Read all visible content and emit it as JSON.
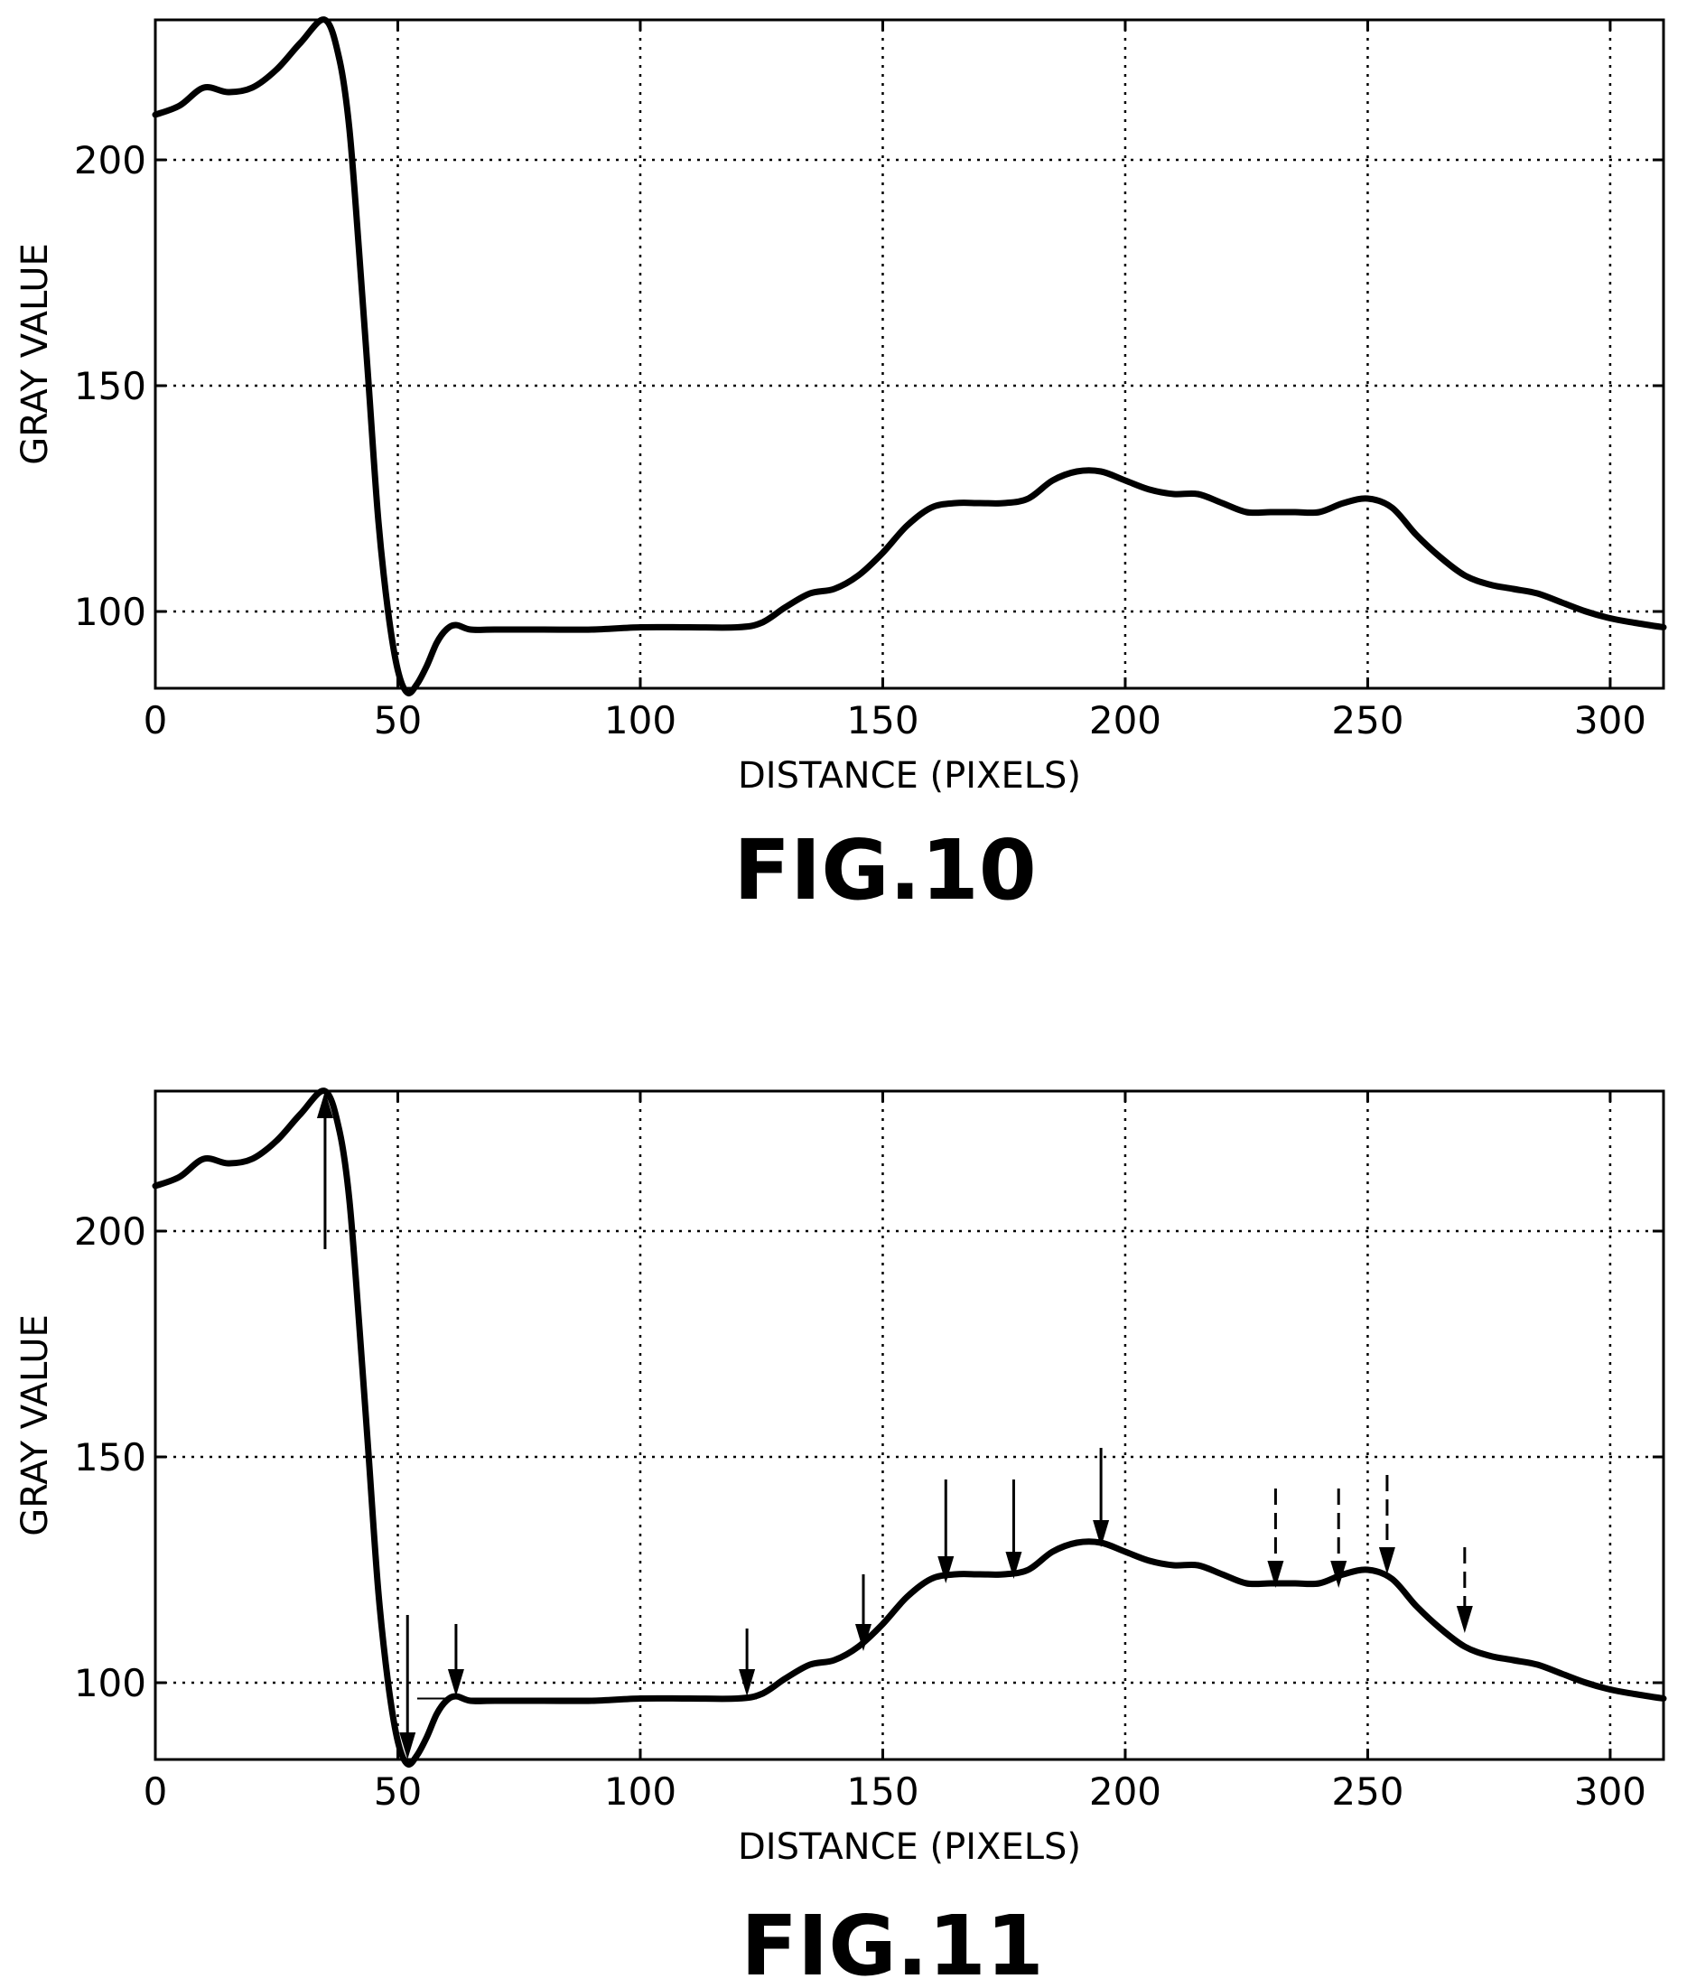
{
  "chart_data": [
    {
      "type": "line",
      "figure_label": "FIG.10",
      "xlabel": "DISTANCE (PIXELS)",
      "ylabel": "GRAY VALUE",
      "xlim": [
        0,
        311
      ],
      "ylim": [
        83,
        231
      ],
      "xticks": [
        0,
        50,
        100,
        150,
        200,
        250,
        300
      ],
      "yticks": [
        100,
        150,
        200
      ],
      "grid": "dotted",
      "x": [
        0,
        5,
        10,
        15,
        20,
        25,
        30,
        35,
        38,
        40,
        42,
        44,
        46,
        48,
        50,
        52,
        54,
        56,
        58,
        60,
        62,
        65,
        70,
        80,
        90,
        100,
        110,
        120,
        125,
        130,
        135,
        140,
        145,
        150,
        155,
        160,
        165,
        170,
        175,
        180,
        185,
        190,
        195,
        200,
        205,
        210,
        215,
        220,
        225,
        230,
        235,
        240,
        245,
        250,
        255,
        260,
        265,
        270,
        275,
        280,
        285,
        290,
        295,
        300,
        305,
        311
      ],
      "y": [
        210,
        212,
        216,
        215,
        216,
        220,
        226,
        231,
        222,
        207,
        180,
        150,
        120,
        100,
        87,
        82,
        84,
        88,
        93,
        96,
        97,
        96,
        96,
        96,
        96,
        96.5,
        96.5,
        96.5,
        97.5,
        101,
        104,
        105,
        108,
        113,
        119,
        123,
        124,
        124,
        124,
        125,
        129,
        131,
        131,
        129,
        127,
        126,
        126,
        124,
        122,
        122,
        122,
        122,
        124,
        125,
        123,
        117,
        112,
        108,
        106,
        105,
        104,
        102,
        100,
        98.5,
        97.5,
        96.5
      ]
    },
    {
      "type": "line",
      "figure_label": "FIG.11",
      "xlabel": "DISTANCE (PIXELS)",
      "ylabel": "GRAY VALUE",
      "xlim": [
        0,
        311
      ],
      "ylim": [
        83,
        231
      ],
      "xticks": [
        0,
        50,
        100,
        150,
        200,
        250,
        300
      ],
      "yticks": [
        100,
        150,
        200
      ],
      "grid": "dotted",
      "x": [
        0,
        5,
        10,
        15,
        20,
        25,
        30,
        35,
        38,
        40,
        42,
        44,
        46,
        48,
        50,
        52,
        54,
        56,
        58,
        60,
        62,
        65,
        70,
        80,
        90,
        100,
        110,
        120,
        125,
        130,
        135,
        140,
        145,
        150,
        155,
        160,
        165,
        170,
        175,
        180,
        185,
        190,
        195,
        200,
        205,
        210,
        215,
        220,
        225,
        230,
        235,
        240,
        245,
        250,
        255,
        260,
        265,
        270,
        275,
        280,
        285,
        290,
        295,
        300,
        305,
        311
      ],
      "y": [
        210,
        212,
        216,
        215,
        216,
        220,
        226,
        231,
        222,
        207,
        180,
        150,
        120,
        100,
        87,
        82,
        84,
        88,
        93,
        96,
        97,
        96,
        96,
        96,
        96,
        96.5,
        96.5,
        96.5,
        97.5,
        101,
        104,
        105,
        108,
        113,
        119,
        123,
        124,
        124,
        124,
        125,
        129,
        131,
        131,
        129,
        127,
        126,
        126,
        124,
        122,
        122,
        122,
        122,
        124,
        125,
        123,
        117,
        112,
        108,
        106,
        105,
        104,
        102,
        100,
        98.5,
        97.5,
        96.5
      ],
      "plateau_segments": [
        {
          "x_start": 54,
          "x_end": 124,
          "y": 96.5
        }
      ],
      "arrows": [
        {
          "x": 35,
          "y_tip": 231,
          "y_tail": 196,
          "direction": "up",
          "style": "solid"
        },
        {
          "x": 52,
          "y_tip": 83,
          "y_tail": 115,
          "direction": "down",
          "style": "solid"
        },
        {
          "x": 62,
          "y_tip": 97,
          "y_tail": 113,
          "direction": "down",
          "style": "solid"
        },
        {
          "x": 122,
          "y_tip": 97,
          "y_tail": 112,
          "direction": "down",
          "style": "solid"
        },
        {
          "x": 146,
          "y_tip": 107,
          "y_tail": 124,
          "direction": "down",
          "style": "solid"
        },
        {
          "x": 163,
          "y_tip": 122,
          "y_tail": 145,
          "direction": "down",
          "style": "solid"
        },
        {
          "x": 177,
          "y_tip": 123,
          "y_tail": 145,
          "direction": "down",
          "style": "solid"
        },
        {
          "x": 195,
          "y_tip": 130,
          "y_tail": 152,
          "direction": "down",
          "style": "solid"
        },
        {
          "x": 231,
          "y_tip": 121,
          "y_tail": 143,
          "direction": "down",
          "style": "dashed"
        },
        {
          "x": 244,
          "y_tip": 121,
          "y_tail": 143,
          "direction": "down",
          "style": "dashed"
        },
        {
          "x": 254,
          "y_tip": 124,
          "y_tail": 146,
          "direction": "down",
          "style": "dashed"
        },
        {
          "x": 270,
          "y_tip": 111,
          "y_tail": 130,
          "direction": "down",
          "style": "dashed"
        }
      ]
    }
  ]
}
